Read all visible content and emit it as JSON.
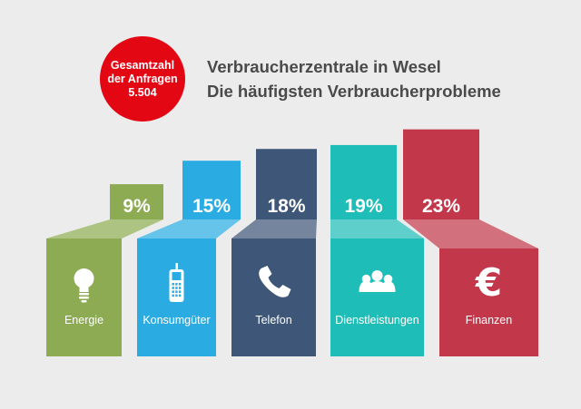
{
  "badge": {
    "line1": "Gesamtzahl",
    "line2": "der Anfragen",
    "line3": "5.504",
    "color": "#e30613"
  },
  "title": {
    "line1": "Verbraucherzentrale in Wesel",
    "line2": "Die häufigsten Verbraucherprobleme"
  },
  "chart_data": {
    "type": "bar",
    "categories": [
      "Energie",
      "Konsumgüter",
      "Telefon",
      "Dienstleistungen",
      "Finanzen"
    ],
    "values": [
      9,
      15,
      18,
      19,
      23
    ],
    "value_labels": [
      "9%",
      "15%",
      "18%",
      "19%",
      "23%"
    ],
    "unit": "%",
    "colors": [
      "#8cab52",
      "#2aace2",
      "#3e5677",
      "#1fbdb7",
      "#c2384a"
    ],
    "icons": [
      "light-bulb-icon",
      "mobile-phone-icon",
      "telephone-handset-icon",
      "people-group-icon",
      "euro-icon"
    ],
    "title": "Verbraucherzentrale in Wesel",
    "subtitle": "Die häufigsten Verbraucherprobleme",
    "grid": false,
    "legend": "none"
  }
}
